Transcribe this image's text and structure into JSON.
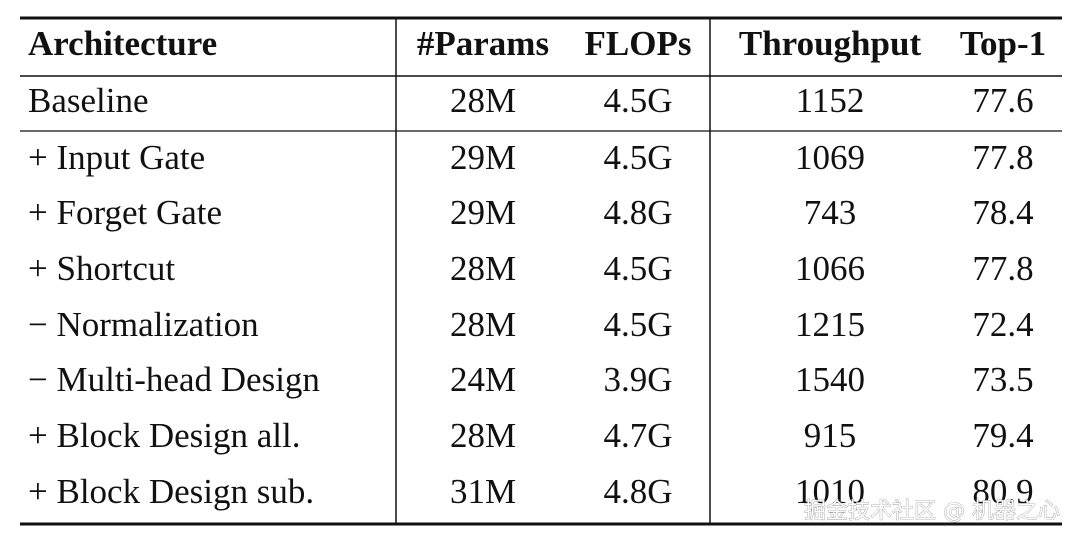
{
  "table": {
    "header": [
      "Architecture",
      "#Params",
      "FLOPs",
      "Throughput",
      "Top-1"
    ],
    "rows": [
      [
        "Baseline",
        "28M",
        "4.5G",
        "1152",
        "77.6"
      ],
      [
        "+ Input Gate",
        "29M",
        "4.5G",
        "1069",
        "77.8"
      ],
      [
        "+ Forget Gate",
        "29M",
        "4.8G",
        "743",
        "78.4"
      ],
      [
        "+ Shortcut",
        "28M",
        "4.5G",
        "1066",
        "77.8"
      ],
      [
        "− Normalization",
        "28M",
        "4.5G",
        "1215",
        "72.4"
      ],
      [
        "− Multi-head Design",
        "24M",
        "3.9G",
        "1540",
        "73.5"
      ],
      [
        "+ Block Design all.",
        "28M",
        "4.7G",
        "915",
        "79.4"
      ],
      [
        "+ Block Design sub.",
        "31M",
        "4.8G",
        "1010",
        "80.9"
      ]
    ]
  },
  "watermark": "掘金技术社区 @ 机器之心"
}
